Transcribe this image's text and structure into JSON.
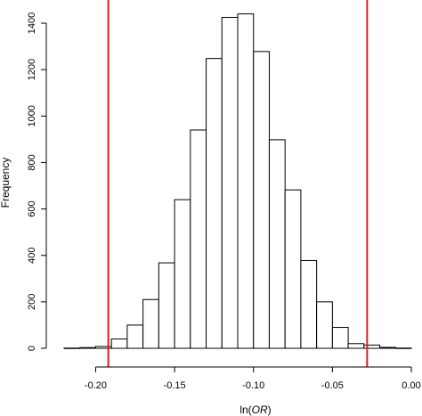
{
  "chart_data": {
    "type": "bar",
    "xlabel_prefix": "ln(",
    "xlabel_italic": "OR",
    "xlabel_suffix": ")",
    "ylabel": "Frequency",
    "xlim": [
      -0.22,
      0.0
    ],
    "ylim": [
      0,
      1450
    ],
    "x_ticks": [
      -0.2,
      -0.15,
      -0.1,
      -0.05,
      0.0
    ],
    "x_tick_labels": [
      "-0.20",
      "-0.15",
      "-0.10",
      "-0.05",
      "0.00"
    ],
    "y_ticks": [
      0,
      200,
      400,
      600,
      800,
      1000,
      1200,
      1400
    ],
    "y_tick_labels": [
      "0",
      "200",
      "400",
      "600",
      "800",
      "1000",
      "1200",
      "1400"
    ],
    "bin_width": 0.01,
    "bins": [
      {
        "x0": -0.22,
        "x1": -0.21,
        "count": 1
      },
      {
        "x0": -0.21,
        "x1": -0.2,
        "count": 3
      },
      {
        "x0": -0.2,
        "x1": -0.19,
        "count": 8
      },
      {
        "x0": -0.19,
        "x1": -0.18,
        "count": 40
      },
      {
        "x0": -0.18,
        "x1": -0.17,
        "count": 100
      },
      {
        "x0": -0.17,
        "x1": -0.16,
        "count": 210
      },
      {
        "x0": -0.16,
        "x1": -0.15,
        "count": 368
      },
      {
        "x0": -0.15,
        "x1": -0.14,
        "count": 640
      },
      {
        "x0": -0.14,
        "x1": -0.13,
        "count": 940
      },
      {
        "x0": -0.13,
        "x1": -0.12,
        "count": 1248
      },
      {
        "x0": -0.12,
        "x1": -0.11,
        "count": 1425
      },
      {
        "x0": -0.11,
        "x1": -0.1,
        "count": 1440
      },
      {
        "x0": -0.1,
        "x1": -0.09,
        "count": 1278
      },
      {
        "x0": -0.09,
        "x1": -0.08,
        "count": 898
      },
      {
        "x0": -0.08,
        "x1": -0.07,
        "count": 682
      },
      {
        "x0": -0.07,
        "x1": -0.06,
        "count": 378
      },
      {
        "x0": -0.06,
        "x1": -0.05,
        "count": 200
      },
      {
        "x0": -0.05,
        "x1": -0.04,
        "count": 90
      },
      {
        "x0": -0.04,
        "x1": -0.03,
        "count": 20
      },
      {
        "x0": -0.03,
        "x1": -0.02,
        "count": 14
      },
      {
        "x0": -0.02,
        "x1": -0.01,
        "count": 4
      },
      {
        "x0": -0.01,
        "x1": 0.0,
        "count": 1
      }
    ],
    "reference_lines": [
      {
        "x": -0.192,
        "color": "#d62020"
      },
      {
        "x": -0.028,
        "color": "#d62020"
      }
    ],
    "grid": false
  }
}
